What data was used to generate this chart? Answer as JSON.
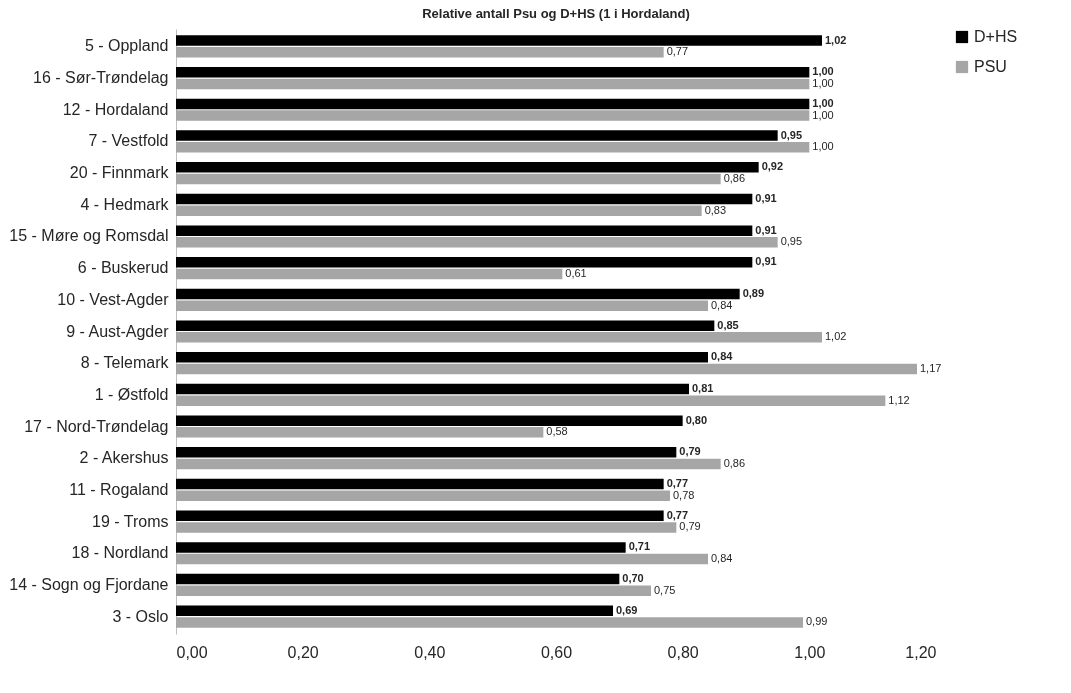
{
  "chart_data": {
    "type": "bar",
    "title": "Relative antall Psu og D+HS (1 i Hordaland)",
    "orientation": "horizontal",
    "categories": [
      "5 - Oppland",
      "16 - Sør-Trøndelag",
      "12 - Hordaland",
      "7 - Vestfold",
      "20 - Finnmark",
      "4 - Hedmark",
      "15 - Møre og Romsdal",
      "6 - Buskerud",
      "10 - Vest-Agder",
      "9 - Aust-Agder",
      "8 - Telemark",
      "1 - Østfold",
      "17 - Nord-Trøndelag",
      "2 - Akershus",
      "11 - Rogaland",
      "19 - Troms",
      "18 - Nordland",
      "14 - Sogn og Fjordane",
      "3 - Oslo"
    ],
    "series": [
      {
        "name": "D+HS",
        "color": "#000000",
        "values": [
          1.02,
          1.0,
          1.0,
          0.95,
          0.92,
          0.91,
          0.91,
          0.91,
          0.89,
          0.85,
          0.84,
          0.81,
          0.8,
          0.79,
          0.77,
          0.77,
          0.71,
          0.7,
          0.69
        ],
        "value_labels": [
          "1,02",
          "1,00",
          "1,00",
          "0,95",
          "0,92",
          "0,91",
          "0,91",
          "0,91",
          "0,89",
          "0,85",
          "0,84",
          "0,81",
          "0,80",
          "0,79",
          "0,77",
          "0,77",
          "0,71",
          "0,70",
          "0,69"
        ]
      },
      {
        "name": "PSU",
        "color": "#a6a6a6",
        "values": [
          0.77,
          1.0,
          1.0,
          1.0,
          0.86,
          0.83,
          0.95,
          0.61,
          0.84,
          1.02,
          1.17,
          1.12,
          0.58,
          0.86,
          0.78,
          0.79,
          0.84,
          0.75,
          0.99
        ],
        "value_labels": [
          "0,77",
          "1,00",
          "1,00",
          "1,00",
          "0,86",
          "0,83",
          "0,95",
          "0,61",
          "0,84",
          "1,02",
          "1,17",
          "1,12",
          "0,58",
          "0,86",
          "0,78",
          "0,79",
          "0,84",
          "0,75",
          "0,99"
        ]
      }
    ],
    "xlim": [
      0,
      1.2
    ],
    "xticks": [
      {
        "value": 0,
        "label": "0,00"
      },
      {
        "value": 0.2,
        "label": "0,20"
      },
      {
        "value": 0.4,
        "label": "0,40"
      },
      {
        "value": 0.6,
        "label": "0,60"
      },
      {
        "value": 0.8,
        "label": "0,80"
      },
      {
        "value": 1.0,
        "label": "1,00"
      },
      {
        "value": 1.2,
        "label": "1,20"
      }
    ],
    "legend": "right"
  }
}
